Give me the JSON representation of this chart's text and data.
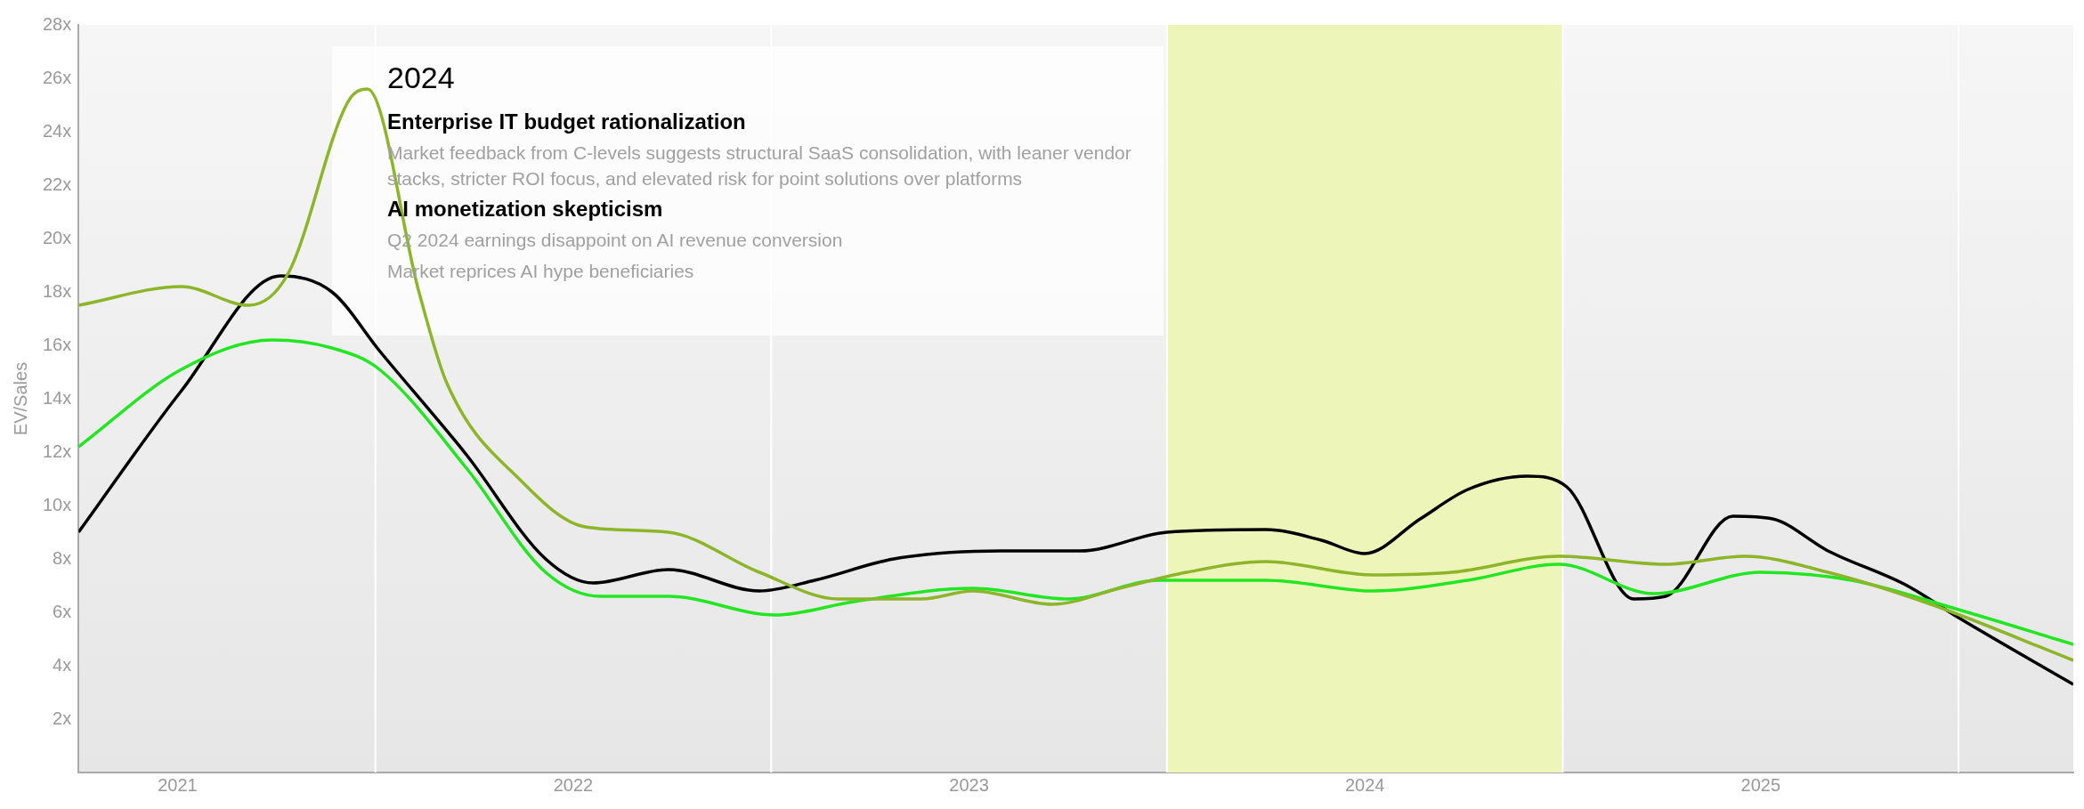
{
  "chart_data": {
    "type": "line",
    "ylabel": "EV/Sales",
    "annotations": [
      "2024",
      "Enterprise IT budget rationalization",
      "Market feedback from C-levels suggests structural SaaS consolidation, with leaner vendor stacks, stricter ROI focus, and elevated risk for point solutions over platforms",
      "AI monetization skepticism",
      "Q2 2024 earnings disappoint on AI revenue conversion",
      "Market reprices AI hype beneficiaries"
    ],
    "xlim": [
      2021.25,
      2026.29
    ],
    "xticks": [
      {
        "value": 2021.5,
        "label": "2021"
      },
      {
        "value": 2022.5,
        "label": "2022"
      },
      {
        "value": 2023.5,
        "label": "2023"
      },
      {
        "value": 2024.5,
        "label": "2024"
      },
      {
        "value": 2025.5,
        "label": "2025"
      }
    ],
    "ylim": [
      0,
      28
    ],
    "yticks": [
      {
        "value": 2,
        "label": "2x"
      },
      {
        "value": 4,
        "label": "4x"
      },
      {
        "value": 6,
        "label": "6x"
      },
      {
        "value": 8,
        "label": "8x"
      },
      {
        "value": 10,
        "label": "10x"
      },
      {
        "value": 12,
        "label": "12x"
      },
      {
        "value": 14,
        "label": "14x"
      },
      {
        "value": 16,
        "label": "16x"
      },
      {
        "value": 18,
        "label": "18x"
      },
      {
        "value": 20,
        "label": "20x"
      },
      {
        "value": 22,
        "label": "22x"
      },
      {
        "value": 24,
        "label": "24x"
      },
      {
        "value": 26,
        "label": "26x"
      },
      {
        "value": 28,
        "label": "28x"
      }
    ],
    "grid": false,
    "legend": false,
    "marker": "none",
    "line_style": "solid",
    "bands": [
      {
        "axis": "x",
        "from": 2024,
        "to": 2025,
        "color": "#eef5b8"
      }
    ],
    "ref_lines": [
      {
        "axis": "x",
        "value": 2022,
        "color": "#ffffff"
      },
      {
        "axis": "x",
        "value": 2023,
        "color": "#ffffff"
      },
      {
        "axis": "x",
        "value": 2024,
        "color": "#ffffff"
      },
      {
        "axis": "x",
        "value": 2025,
        "color": "#ffffff"
      },
      {
        "axis": "x",
        "value": 2026,
        "color": "#ffffff"
      }
    ],
    "series": [
      {
        "color": "#8db52a",
        "x": [
          2021.25,
          2021.51,
          2021.68,
          2021.78,
          2021.93,
          2021.98,
          2022.11,
          2022.18,
          2022.37,
          2022.53,
          2022.74,
          2022.97,
          2023.17,
          2023.38,
          2023.51,
          2023.71,
          2023.88,
          2024.05,
          2024.25,
          2024.52,
          2024.72,
          2024.99,
          2025.26,
          2025.46,
          2025.67,
          2025.93,
          2026.29
        ],
        "values": [
          17.5,
          18.2,
          17.5,
          18.7,
          25.1,
          25.6,
          18,
          14.6,
          10.9,
          9.2,
          9,
          7.5,
          6.5,
          6.5,
          6.8,
          6.3,
          6.9,
          7.5,
          7.9,
          7.4,
          7.5,
          8.1,
          7.8,
          8.1,
          7.5,
          6.3,
          4.2
        ]
      },
      {
        "color": "#22e622",
        "x": [
          2021.25,
          2021.51,
          2021.74,
          2021.89,
          2022.01,
          2022.23,
          2022.43,
          2022.57,
          2022.74,
          2023.01,
          2023.21,
          2023.51,
          2023.75,
          2023.98,
          2024.25,
          2024.52,
          2024.76,
          2024.99,
          2025.23,
          2025.5,
          2025.73,
          2026.0,
          2026.29
        ],
        "values": [
          12.2,
          15.1,
          16.2,
          15.9,
          15.1,
          11.4,
          7.5,
          6.6,
          6.6,
          5.9,
          6.4,
          6.9,
          6.5,
          7.2,
          7.2,
          6.8,
          7.2,
          7.8,
          6.7,
          7.5,
          7.2,
          6.1,
          4.8
        ]
      },
      {
        "color": "#000000",
        "x": [
          2021.25,
          2021.51,
          2021.76,
          2021.89,
          2022.01,
          2022.23,
          2022.43,
          2022.55,
          2022.74,
          2022.97,
          2023.11,
          2023.31,
          2023.58,
          2023.78,
          2024.0,
          2024.25,
          2024.39,
          2024.5,
          2024.64,
          2024.76,
          2024.91,
          2025.01,
          2025.18,
          2025.26,
          2025.43,
          2025.53,
          2025.67,
          2025.87,
          2026.0,
          2026.29
        ],
        "values": [
          9.0,
          14.3,
          18.6,
          18.0,
          15.8,
          11.9,
          8.0,
          7.1,
          7.6,
          6.8,
          7.2,
          8.0,
          8.3,
          8.3,
          9.0,
          9.1,
          8.7,
          8.2,
          9.5,
          10.6,
          11.1,
          10.7,
          6.5,
          6.6,
          9.6,
          9.5,
          8.3,
          7.0,
          5.8,
          3.3
        ]
      }
    ]
  }
}
